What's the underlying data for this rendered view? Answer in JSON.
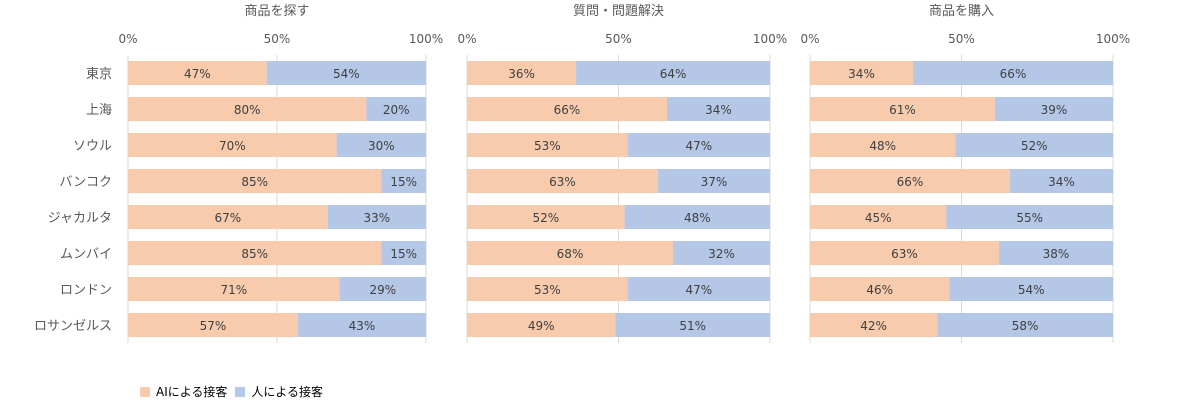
{
  "chart_data": [
    {
      "type": "bar",
      "stacked": true,
      "orientation": "horizontal",
      "title": "商品を探す",
      "categories": [
        "東京",
        "上海",
        "ソウル",
        "バンコク",
        "ジャカルタ",
        "ムンバイ",
        "ロンドン",
        "ロサンゼルス"
      ],
      "series": [
        {
          "name": "AIによる接客",
          "values": [
            47,
            80,
            70,
            85,
            67,
            85,
            71,
            57
          ]
        },
        {
          "name": "人による接客",
          "values": [
            54,
            20,
            30,
            15,
            33,
            15,
            29,
            43
          ]
        }
      ],
      "xlim": [
        0,
        100
      ],
      "ticks": [
        "0%",
        "50%",
        "100%"
      ],
      "grid": true
    },
    {
      "type": "bar",
      "stacked": true,
      "orientation": "horizontal",
      "title": "質問・問題解決",
      "categories": [
        "東京",
        "上海",
        "ソウル",
        "バンコク",
        "ジャカルタ",
        "ムンバイ",
        "ロンドン",
        "ロサンゼルス"
      ],
      "series": [
        {
          "name": "AIによる接客",
          "values": [
            36,
            66,
            53,
            63,
            52,
            68,
            53,
            49
          ]
        },
        {
          "name": "人による接客",
          "values": [
            64,
            34,
            47,
            37,
            48,
            32,
            47,
            51
          ]
        }
      ],
      "xlim": [
        0,
        100
      ],
      "ticks": [
        "0%",
        "50%",
        "100%"
      ],
      "grid": true
    },
    {
      "type": "bar",
      "stacked": true,
      "orientation": "horizontal",
      "title": "商品を購入",
      "categories": [
        "東京",
        "上海",
        "ソウル",
        "バンコク",
        "ジャカルタ",
        "ムンバイ",
        "ロンドン",
        "ロサンゼルス"
      ],
      "series": [
        {
          "name": "AIによる接客",
          "values": [
            34,
            61,
            48,
            66,
            45,
            63,
            46,
            42
          ]
        },
        {
          "name": "人による接客",
          "values": [
            66,
            39,
            52,
            34,
            55,
            38,
            54,
            58
          ]
        }
      ],
      "xlim": [
        0,
        100
      ],
      "ticks": [
        "0%",
        "50%",
        "100%"
      ],
      "grid": true
    }
  ],
  "legend": {
    "position": "bottom-left",
    "items": [
      {
        "label": "AIによる接客",
        "color": "#f8cbad"
      },
      {
        "label": "人による接客",
        "color": "#b4c7e7"
      }
    ]
  },
  "colors": {
    "ai": "#f8cbad",
    "human": "#b4c7e7",
    "text": "#595959",
    "grid": "#d9d9d9"
  }
}
